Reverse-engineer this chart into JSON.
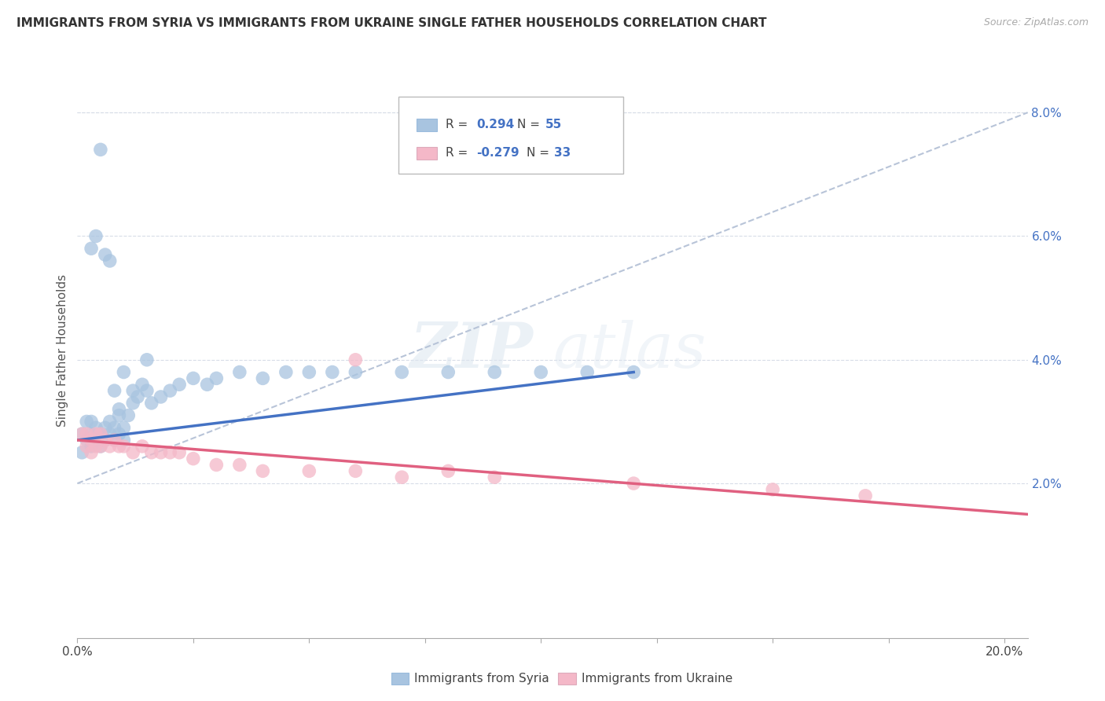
{
  "title": "IMMIGRANTS FROM SYRIA VS IMMIGRANTS FROM UKRAINE SINGLE FATHER HOUSEHOLDS CORRELATION CHART",
  "source": "Source: ZipAtlas.com",
  "ylabel": "Single Father Households",
  "xlim": [
    0.0,
    0.205
  ],
  "ylim": [
    -0.005,
    0.088
  ],
  "yticks": [
    0.0,
    0.02,
    0.04,
    0.06,
    0.08
  ],
  "ytick_labels": [
    "",
    "2.0%",
    "4.0%",
    "6.0%",
    "8.0%"
  ],
  "syria_color": "#a8c4e0",
  "ukraine_color": "#f4b8c8",
  "syria_line_color": "#4472c4",
  "ukraine_line_color": "#e06080",
  "dash_line_color": "#b8c4d8",
  "legend_syria_R": "0.294",
  "legend_syria_N": "55",
  "legend_ukraine_R": "-0.279",
  "legend_ukraine_N": "33",
  "watermark_zip": "ZIP",
  "watermark_atlas": "atlas",
  "syria_x": [
    0.001,
    0.001,
    0.002,
    0.002,
    0.003,
    0.003,
    0.003,
    0.004,
    0.004,
    0.005,
    0.005,
    0.006,
    0.006,
    0.007,
    0.007,
    0.008,
    0.008,
    0.009,
    0.009,
    0.01,
    0.01,
    0.011,
    0.012,
    0.012,
    0.013,
    0.014,
    0.015,
    0.016,
    0.018,
    0.02,
    0.022,
    0.025,
    0.028,
    0.03,
    0.035,
    0.04,
    0.045,
    0.05,
    0.055,
    0.06,
    0.07,
    0.08,
    0.09,
    0.1,
    0.11,
    0.12,
    0.003,
    0.004,
    0.005,
    0.006,
    0.007,
    0.008,
    0.009,
    0.01,
    0.015
  ],
  "syria_y": [
    0.028,
    0.025,
    0.027,
    0.03,
    0.026,
    0.028,
    0.03,
    0.027,
    0.029,
    0.026,
    0.028,
    0.027,
    0.029,
    0.028,
    0.03,
    0.027,
    0.029,
    0.028,
    0.031,
    0.027,
    0.029,
    0.031,
    0.033,
    0.035,
    0.034,
    0.036,
    0.035,
    0.033,
    0.034,
    0.035,
    0.036,
    0.037,
    0.036,
    0.037,
    0.038,
    0.037,
    0.038,
    0.038,
    0.038,
    0.038,
    0.038,
    0.038,
    0.038,
    0.038,
    0.038,
    0.038,
    0.058,
    0.06,
    0.074,
    0.057,
    0.056,
    0.035,
    0.032,
    0.038,
    0.04
  ],
  "ukraine_x": [
    0.001,
    0.002,
    0.002,
    0.003,
    0.003,
    0.004,
    0.004,
    0.005,
    0.005,
    0.006,
    0.007,
    0.008,
    0.009,
    0.01,
    0.012,
    0.014,
    0.016,
    0.018,
    0.02,
    0.022,
    0.025,
    0.03,
    0.035,
    0.04,
    0.05,
    0.06,
    0.07,
    0.08,
    0.09,
    0.12,
    0.15,
    0.17,
    0.06
  ],
  "ukraine_y": [
    0.028,
    0.026,
    0.028,
    0.025,
    0.027,
    0.026,
    0.028,
    0.026,
    0.028,
    0.027,
    0.026,
    0.027,
    0.026,
    0.026,
    0.025,
    0.026,
    0.025,
    0.025,
    0.025,
    0.025,
    0.024,
    0.023,
    0.023,
    0.022,
    0.022,
    0.022,
    0.021,
    0.022,
    0.021,
    0.02,
    0.019,
    0.018,
    0.04
  ],
  "syria_trendline": [
    0.0,
    0.12,
    0.027,
    0.038
  ],
  "ukraine_trendline": [
    0.0,
    0.205,
    0.027,
    0.015
  ],
  "dash_trendline": [
    0.0,
    0.205,
    0.02,
    0.08
  ]
}
